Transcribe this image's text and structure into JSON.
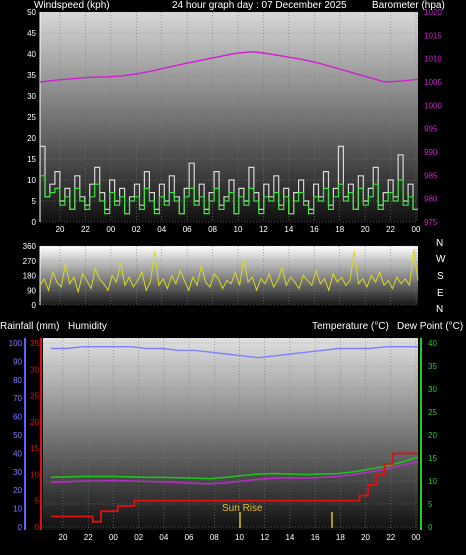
{
  "header": {
    "left": "Windspeed (kph)",
    "center": "24 hour graph day : 07 December 2025",
    "right": "Barometer (hpa)"
  },
  "middle": {
    "compass": [
      "N",
      "W",
      "S",
      "E",
      "N"
    ]
  },
  "bottom_header": {
    "rain": "Rainfall (mm)",
    "humidity": "Humidity",
    "temperature": "Temperature (°C)",
    "dewpoint": "Dew Point (°C)"
  },
  "annotation": "Sun Rise",
  "colors": {
    "wind": "#d8d8d8",
    "gust": "#40e040",
    "barometer": "#d020d0",
    "direction": "#d8d820",
    "humidity": "#8080ff",
    "temperature": "#20c020",
    "dewpoint": "#b030c0",
    "rain": "#e01010",
    "rain_axis": "#e01010",
    "humidity_axis": "#6060ff",
    "temp_axis": "#20d020"
  },
  "chart_data": [
    {
      "type": "line",
      "x_ticks": [
        "20",
        "22",
        "00",
        "02",
        "04",
        "06",
        "08",
        "10",
        "12",
        "14",
        "16",
        "18",
        "20",
        "22",
        "00"
      ],
      "y_left_ticks": [
        "0",
        "5",
        "10",
        "15",
        "20",
        "25",
        "30",
        "35",
        "40",
        "45",
        "50"
      ],
      "ylim_left": [
        0,
        50
      ],
      "y_right_ticks": [
        "975",
        "980",
        "985",
        "990",
        "995",
        "1000",
        "1005",
        "1010",
        "1015",
        "1020"
      ],
      "ylim_right": [
        975,
        1020
      ],
      "series": [
        {
          "name": "Windspeed",
          "axis": "left",
          "values": [
            18,
            6,
            9,
            12,
            5,
            8,
            3,
            11,
            6,
            4,
            9,
            13,
            7,
            3,
            10,
            5,
            8,
            2,
            6,
            9,
            4,
            12,
            7,
            3,
            9,
            5,
            11,
            6,
            2,
            8,
            14,
            5,
            9,
            3,
            7,
            12,
            4,
            6,
            10,
            2,
            8,
            5,
            13,
            7,
            3,
            9,
            6,
            11,
            4,
            8,
            2,
            7,
            10,
            5,
            3,
            9,
            6,
            12,
            4,
            8,
            18,
            6,
            9,
            3,
            11,
            5,
            8,
            13,
            4,
            7,
            10,
            6,
            16,
            5,
            9,
            3
          ]
        },
        {
          "name": "Gust",
          "axis": "left",
          "values": [
            11,
            6,
            7,
            8,
            4,
            6,
            3,
            8,
            5,
            3,
            6,
            9,
            5,
            2,
            7,
            4,
            6,
            2,
            5,
            6,
            3,
            8,
            5,
            2,
            6,
            4,
            7,
            5,
            2,
            6,
            8,
            4,
            6,
            2,
            5,
            8,
            3,
            5,
            7,
            2,
            6,
            4,
            8,
            5,
            2,
            6,
            5,
            7,
            3,
            6,
            2,
            5,
            7,
            4,
            2,
            6,
            5,
            8,
            3,
            6,
            9,
            5,
            7,
            3,
            8,
            4,
            6,
            9,
            3,
            5,
            7,
            5,
            10,
            4,
            6,
            3
          ]
        },
        {
          "name": "Barometer",
          "axis": "right",
          "values": [
            1005,
            1005.4,
            1005.7,
            1006,
            1006.1,
            1006.3,
            1006.8,
            1007.5,
            1008.3,
            1009.1,
            1009.8,
            1010.5,
            1011.2,
            1011.5,
            1011,
            1010.4,
            1009.8,
            1009,
            1008,
            1007,
            1006,
            1005,
            1005.2,
            1005.6
          ]
        }
      ]
    },
    {
      "type": "line",
      "x_ticks": [
        "20",
        "22",
        "00",
        "02",
        "04",
        "06",
        "08",
        "10",
        "12",
        "14",
        "16",
        "18",
        "20",
        "22",
        "00"
      ],
      "y_ticks": [
        "0",
        "90",
        "180",
        "270",
        "360"
      ],
      "ylim": [
        0,
        360
      ],
      "series": [
        {
          "name": "Wind Direction",
          "values": [
            120,
            160,
            90,
            200,
            140,
            110,
            250,
            130,
            170,
            80,
            190,
            150,
            100,
            220,
            160,
            130,
            90,
            180,
            140,
            260,
            120,
            170,
            110,
            150,
            200,
            90,
            140,
            330,
            120,
            160,
            100,
            180,
            130,
            210,
            150,
            90,
            170,
            120,
            240,
            140,
            110,
            190,
            160,
            100,
            150,
            130,
            200,
            120,
            280,
            140,
            170,
            90,
            160,
            130,
            190,
            110,
            150,
            230,
            120,
            170,
            140,
            100,
            180,
            150,
            120,
            210,
            130,
            160,
            90,
            190,
            140,
            170,
            120,
            150,
            330,
            130,
            160,
            110,
            180,
            140,
            200,
            120,
            150,
            100,
            170,
            130,
            160,
            120,
            340,
            150
          ]
        }
      ]
    },
    {
      "type": "line",
      "x_ticks": [
        "20",
        "22",
        "00",
        "02",
        "04",
        "06",
        "08",
        "10",
        "12",
        "14",
        "16",
        "18",
        "20",
        "22",
        "00"
      ],
      "y_rain_ticks": [
        "0",
        "5",
        "10",
        "15",
        "20",
        "25",
        "30",
        "35"
      ],
      "ylim_rain": [
        0,
        35
      ],
      "y_humidity_ticks": [
        "0",
        "10",
        "20",
        "30",
        "40",
        "50",
        "60",
        "70",
        "80",
        "90",
        "100"
      ],
      "ylim_humidity": [
        0,
        100
      ],
      "y_temp_ticks": [
        "0",
        "5",
        "10",
        "15",
        "20",
        "25",
        "30",
        "35",
        "40"
      ],
      "ylim_temp": [
        0,
        40
      ],
      "series": [
        {
          "name": "Humidity",
          "axis": "humidity",
          "values": [
            97,
            97,
            98,
            98,
            98,
            98,
            97,
            97,
            96,
            96,
            95,
            94,
            93,
            92,
            93,
            94,
            95,
            96,
            97,
            97,
            97,
            98,
            98,
            98
          ]
        },
        {
          "name": "Temperature",
          "axis": "temp",
          "values": [
            10.8,
            10.9,
            11,
            11,
            11,
            10.9,
            10.8,
            10.8,
            10.7,
            10.6,
            10.5,
            10.8,
            11.2,
            11.5,
            11.6,
            11.5,
            11.4,
            11.5,
            11.6,
            12,
            12.6,
            13.2,
            14.1,
            15.2
          ]
        },
        {
          "name": "Dew Point",
          "axis": "temp",
          "values": [
            9.7,
            9.8,
            10,
            10,
            10.1,
            10,
            9.9,
            9.8,
            9.7,
            9.5,
            9.4,
            9.6,
            10,
            10.4,
            10.6,
            10.7,
            10.6,
            10.8,
            11,
            11.4,
            12,
            12.6,
            13.4,
            14.2
          ]
        },
        {
          "name": "Rainfall",
          "axis": "rain",
          "values": [
            2,
            2,
            2,
            2,
            2,
            1,
            3,
            3,
            4,
            4,
            5,
            5,
            5,
            5,
            5,
            5,
            5,
            5,
            5,
            5,
            5,
            5,
            5,
            5,
            5,
            5,
            5,
            5,
            5,
            5,
            5,
            5,
            5,
            5,
            5,
            5,
            5,
            6,
            8,
            10,
            12,
            14,
            14,
            14
          ]
        }
      ]
    }
  ]
}
